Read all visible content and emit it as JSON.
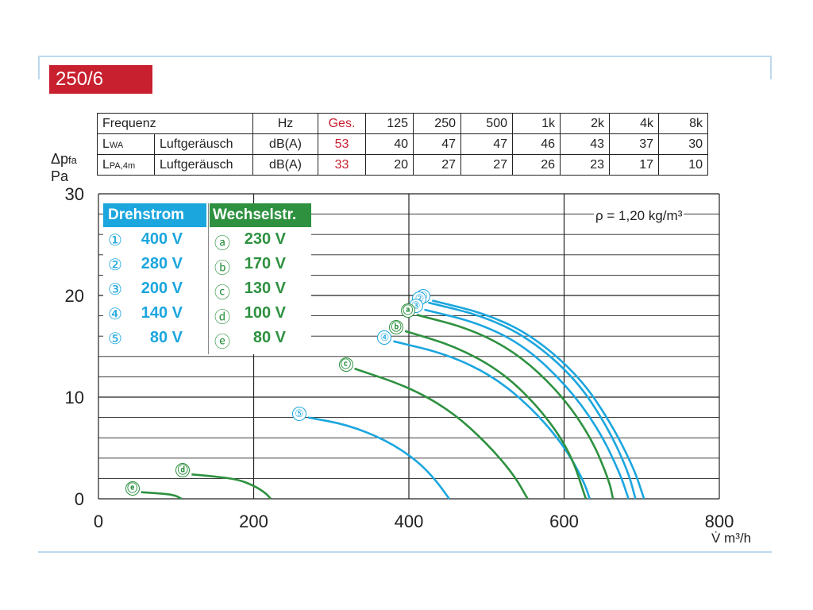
{
  "model": "250/6",
  "table": {
    "header": [
      "Frequenz",
      "Hz",
      "Ges.",
      "125",
      "250",
      "500",
      "1k",
      "2k",
      "4k",
      "8k"
    ],
    "rows": [
      {
        "symbol": "L",
        "sub": "WA",
        "name": "Luftgeräusch",
        "unit": "dB(A)",
        "total": "53",
        "values": [
          "40",
          "47",
          "47",
          "46",
          "43",
          "37",
          "30"
        ]
      },
      {
        "symbol": "L",
        "sub": "PA,4m",
        "name": "Luftgeräusch",
        "unit": "dB(A)",
        "total": "33",
        "values": [
          "20",
          "27",
          "27",
          "26",
          "23",
          "17",
          "10"
        ]
      }
    ]
  },
  "density_label": "ρ = 1,20 kg/m³",
  "legend": {
    "drehstrom_title": "Drehstrom",
    "wechselstrom_title": "Wechselstr.",
    "drehstrom": [
      {
        "symbol": "①",
        "label": "400 V"
      },
      {
        "symbol": "②",
        "label": "280 V"
      },
      {
        "symbol": "③",
        "label": "200 V"
      },
      {
        "symbol": "④",
        "label": "140 V"
      },
      {
        "symbol": "⑤",
        "label": "80 V"
      }
    ],
    "wechselstrom": [
      {
        "symbol": "ⓐ",
        "label": "230 V"
      },
      {
        "symbol": "ⓑ",
        "label": "170 V"
      },
      {
        "symbol": "ⓒ",
        "label": "130 V"
      },
      {
        "symbol": "ⓓ",
        "label": "100 V"
      },
      {
        "symbol": "ⓔ",
        "label": "80 V"
      }
    ]
  },
  "colors": {
    "drehstrom": "#1ba6de",
    "wechselstrom": "#2e9140",
    "badge": "#c8202f"
  },
  "chart_data": {
    "type": "line",
    "ylabel_top": "Δp",
    "ylabel_sub": "fa",
    "ylabel_unit": "Pa",
    "xlabel": "V̇ m³/h",
    "xlim": [
      0,
      800
    ],
    "ylim": [
      0,
      30
    ],
    "x_ticks": [
      0,
      200,
      400,
      600,
      800
    ],
    "y_ticks": [
      0,
      10,
      20,
      30
    ],
    "grid": true,
    "series": [
      {
        "name": "①",
        "group": "drehstrom",
        "x": [
          430,
          500,
          560,
          620,
          660,
          690,
          703
        ],
        "y": [
          19.5,
          18.2,
          16.0,
          12.0,
          7.5,
          3.0,
          0
        ]
      },
      {
        "name": "②",
        "group": "drehstrom",
        "x": [
          425,
          495,
          555,
          615,
          655,
          682,
          692
        ],
        "y": [
          19.3,
          18.0,
          15.8,
          11.8,
          7.2,
          2.8,
          0
        ]
      },
      {
        "name": "③",
        "group": "drehstrom",
        "x": [
          420,
          490,
          550,
          605,
          645,
          672,
          683
        ],
        "y": [
          18.6,
          17.3,
          15.0,
          11.0,
          6.8,
          2.5,
          0
        ]
      },
      {
        "name": "④",
        "group": "drehstrom",
        "x": [
          380,
          450,
          510,
          560,
          600,
          625,
          633
        ],
        "y": [
          15.5,
          14.2,
          12.0,
          8.8,
          5.2,
          1.8,
          0
        ]
      },
      {
        "name": "⑤",
        "group": "drehstrom",
        "x": [
          270,
          320,
          370,
          410,
          435,
          452
        ],
        "y": [
          8.0,
          7.3,
          5.8,
          3.8,
          1.8,
          0
        ]
      },
      {
        "name": "ⓐ",
        "group": "wechselstrom",
        "x": [
          410,
          480,
          540,
          595,
          635,
          658,
          663
        ],
        "y": [
          18.1,
          16.7,
          14.3,
          10.4,
          6.0,
          1.8,
          0
        ]
      },
      {
        "name": "ⓑ",
        "group": "wechselstrom",
        "x": [
          395,
          460,
          520,
          570,
          608,
          628
        ],
        "y": [
          16.5,
          15.0,
          12.5,
          8.8,
          4.6,
          0
        ]
      },
      {
        "name": "ⓒ",
        "group": "wechselstrom",
        "x": [
          330,
          400,
          455,
          500,
          535,
          553
        ],
        "y": [
          12.8,
          11.0,
          8.6,
          5.5,
          2.4,
          0
        ]
      },
      {
        "name": "ⓓ",
        "group": "wechselstrom",
        "x": [
          120,
          150,
          180,
          200,
          215,
          222
        ],
        "y": [
          2.4,
          2.2,
          1.9,
          1.3,
          0.6,
          0
        ]
      },
      {
        "name": "ⓔ",
        "group": "wechselstrom",
        "x": [
          55,
          75,
          90,
          100,
          107
        ],
        "y": [
          0.65,
          0.55,
          0.45,
          0.3,
          0
        ]
      }
    ]
  }
}
